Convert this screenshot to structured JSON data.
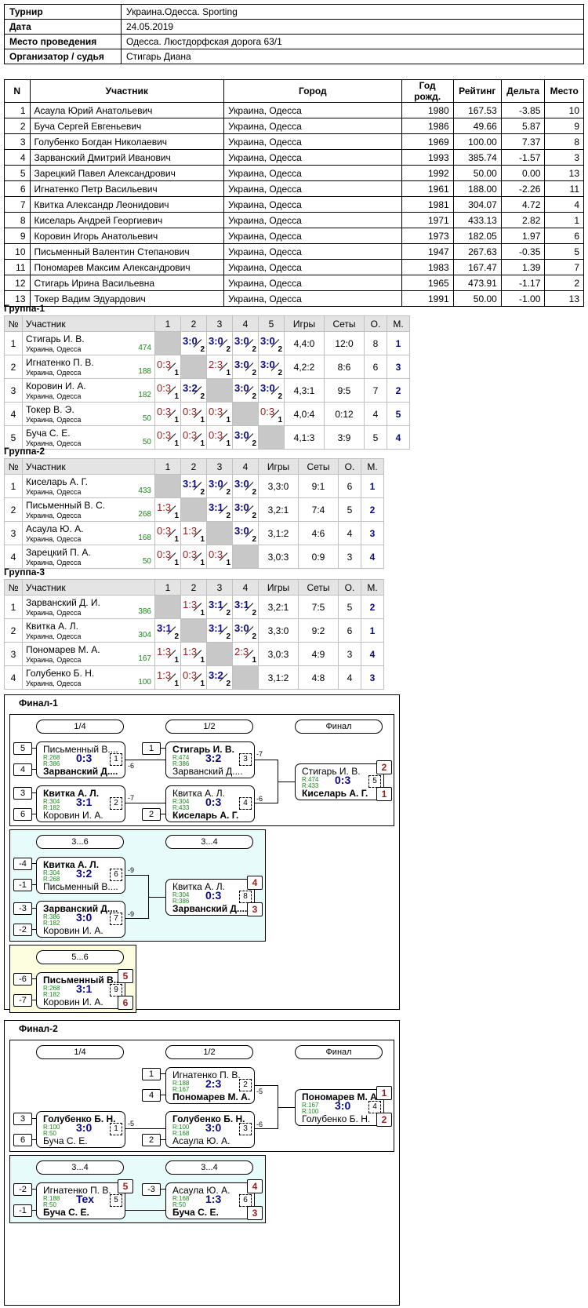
{
  "info": [
    {
      "k": "Турнир",
      "v": "Украина.Одесса. Sporting"
    },
    {
      "k": "Дата",
      "v": "24.05.2019"
    },
    {
      "k": "Место проведения",
      "v": "Одесса. Люстдорфская дорога 63/1"
    },
    {
      "k": "Организатор / судья",
      "v": "Стигарь Диана"
    }
  ],
  "participants": {
    "headers": [
      "N",
      "Участник",
      "Город",
      "Год рожд.",
      "Рейтинг",
      "Дельта",
      "Место"
    ],
    "rows": [
      [
        "1",
        "Асаула Юрий Анатольевич",
        "Украина, Одесса",
        "1980",
        "167.53",
        "-3.85",
        "10"
      ],
      [
        "2",
        "Буча Сергей Евгеньевич",
        "Украина, Одесса",
        "1986",
        "49.66",
        "5.87",
        "9"
      ],
      [
        "3",
        "Голубенко Богдан Николаевич",
        "Украина, Одесса",
        "1969",
        "100.00",
        "7.37",
        "8"
      ],
      [
        "4",
        "Зарванский Дмитрий Иванович",
        "Украина, Одесса",
        "1993",
        "385.74",
        "-1.57",
        "3"
      ],
      [
        "5",
        "Зарецкий Павел Александрович",
        "Украина, Одесса",
        "1992",
        "50.00",
        "0.00",
        "13"
      ],
      [
        "6",
        "Игнатенко Петр Васильевич",
        "Украина, Одесса",
        "1961",
        "188.00",
        "-2.26",
        "11"
      ],
      [
        "7",
        "Квитка Александр Леонидович",
        "Украина, Одесса",
        "1981",
        "304.07",
        "4.72",
        "4"
      ],
      [
        "8",
        "Киселарь Андрей Георгиевич",
        "Украина, Одесса",
        "1971",
        "433.13",
        "2.82",
        "1"
      ],
      [
        "9",
        "Коровин Игорь Анатольевич",
        "Украина, Одесса",
        "1973",
        "182.05",
        "1.97",
        "6"
      ],
      [
        "10",
        "Письменный Валентин Степанович",
        "Украина, Одесса",
        "1947",
        "267.63",
        "-0.35",
        "5"
      ],
      [
        "11",
        "Пономарев Максим Александрович",
        "Украина, Одесса",
        "1983",
        "167.47",
        "1.39",
        "7"
      ],
      [
        "12",
        "Стигарь Ирина Васильевна",
        "Украина, Одесса",
        "1965",
        "473.91",
        "-1.17",
        "2"
      ],
      [
        "13",
        "Токер Вадим Эдуардович",
        "Украина, Одесса",
        "1991",
        "50.00",
        "-1.00",
        "13"
      ]
    ]
  },
  "group_headers": {
    "no": "№",
    "name": "Участник",
    "games": "Игры",
    "sets": "Сеты",
    "points": "О.",
    "place": "М."
  },
  "city_short": "Украина, Одесса",
  "groups": [
    {
      "title": "Группа-1",
      "players": [
        {
          "n": "1",
          "name": "Стигарь И. В.",
          "rating": "474",
          "cells": [
            null,
            [
              "3:0",
              "2"
            ],
            [
              "3:0",
              "2"
            ],
            [
              "3:0",
              "2"
            ],
            [
              "3:0",
              "2"
            ]
          ],
          "games": "4,4:0",
          "sets": "12:0",
          "pts": "8",
          "place": "1"
        },
        {
          "n": "2",
          "name": "Игнатенко П. В.",
          "rating": "188",
          "cells": [
            [
              "0:3",
              "1"
            ],
            null,
            [
              "2:3",
              "1"
            ],
            [
              "3:0",
              "2"
            ],
            [
              "3:0",
              "2"
            ]
          ],
          "games": "4,2:2",
          "sets": "8:6",
          "pts": "6",
          "place": "3"
        },
        {
          "n": "3",
          "name": "Коровин И. А.",
          "rating": "182",
          "cells": [
            [
              "0:3",
              "1"
            ],
            [
              "3:2",
              "2"
            ],
            null,
            [
              "3:0",
              "2"
            ],
            [
              "3:0",
              "2"
            ]
          ],
          "games": "4,3:1",
          "sets": "9:5",
          "pts": "7",
          "place": "2"
        },
        {
          "n": "4",
          "name": "Токер В. Э.",
          "rating": "50",
          "cells": [
            [
              "0:3",
              "1"
            ],
            [
              "0:3",
              "1"
            ],
            [
              "0:3",
              "1"
            ],
            null,
            [
              "0:3",
              "1"
            ]
          ],
          "games": "4,0:4",
          "sets": "0:12",
          "pts": "4",
          "place": "5"
        },
        {
          "n": "5",
          "name": "Буча С. Е.",
          "rating": "50",
          "cells": [
            [
              "0:3",
              "1"
            ],
            [
              "0:3",
              "1"
            ],
            [
              "0:3",
              "1"
            ],
            [
              "3:0",
              "2"
            ],
            null
          ],
          "games": "4,1:3",
          "sets": "3:9",
          "pts": "5",
          "place": "4"
        }
      ]
    },
    {
      "title": "Группа-2",
      "players": [
        {
          "n": "1",
          "name": "Киселарь А. Г.",
          "rating": "433",
          "cells": [
            null,
            [
              "3:1",
              "2"
            ],
            [
              "3:0",
              "2"
            ],
            [
              "3:0",
              "2"
            ]
          ],
          "games": "3,3:0",
          "sets": "9:1",
          "pts": "6",
          "place": "1"
        },
        {
          "n": "2",
          "name": "Письменный В. С.",
          "rating": "268",
          "cells": [
            [
              "1:3",
              "1"
            ],
            null,
            [
              "3:1",
              "2"
            ],
            [
              "3:0",
              "2"
            ]
          ],
          "games": "3,2:1",
          "sets": "7:4",
          "pts": "5",
          "place": "2"
        },
        {
          "n": "3",
          "name": "Асаула Ю. А.",
          "rating": "168",
          "cells": [
            [
              "0:3",
              "1"
            ],
            [
              "1:3",
              "1"
            ],
            null,
            [
              "3:0",
              "2"
            ]
          ],
          "games": "3,1:2",
          "sets": "4:6",
          "pts": "4",
          "place": "3"
        },
        {
          "n": "4",
          "name": "Зарецкий П. А.",
          "rating": "50",
          "cells": [
            [
              "0:3",
              "1"
            ],
            [
              "0:3",
              "1"
            ],
            [
              "0:3",
              "1"
            ],
            null
          ],
          "games": "3,0:3",
          "sets": "0:9",
          "pts": "3",
          "place": "4"
        }
      ]
    },
    {
      "title": "Группа-3",
      "players": [
        {
          "n": "1",
          "name": "Зарванский Д. И.",
          "rating": "386",
          "cells": [
            null,
            [
              "1:3",
              "1"
            ],
            [
              "3:1",
              "2"
            ],
            [
              "3:1",
              "2"
            ]
          ],
          "games": "3,2:1",
          "sets": "7:5",
          "pts": "5",
          "place": "2"
        },
        {
          "n": "2",
          "name": "Квитка А. Л.",
          "rating": "304",
          "cells": [
            [
              "3:1",
              "2"
            ],
            null,
            [
              "3:1",
              "2"
            ],
            [
              "3:0",
              "2"
            ]
          ],
          "games": "3,3:0",
          "sets": "9:2",
          "pts": "6",
          "place": "1"
        },
        {
          "n": "3",
          "name": "Пономарев М. А.",
          "rating": "167",
          "cells": [
            [
              "1:3",
              "1"
            ],
            [
              "1:3",
              "1"
            ],
            null,
            [
              "2:3",
              "1"
            ]
          ],
          "games": "3,0:3",
          "sets": "4:9",
          "pts": "3",
          "place": "4"
        },
        {
          "n": "4",
          "name": "Голубенко Б. Н.",
          "rating": "100",
          "cells": [
            [
              "1:3",
              "1"
            ],
            [
              "0:3",
              "1"
            ],
            [
              "3:2",
              "2"
            ],
            null
          ],
          "games": "3,1:2",
          "sets": "4:8",
          "pts": "4",
          "place": "3"
        }
      ]
    }
  ],
  "final1": {
    "title": "Финал-1",
    "rounds": [
      "1/4",
      "1/2",
      "Финал"
    ],
    "m1": {
      "p1": "Письменный В....",
      "p2": "Зарванский Д....",
      "r1": "R:268",
      "r2": "R:386",
      "score": "0:3",
      "num": "1",
      "s1": "5",
      "s2": "4",
      "win": 2,
      "out": "-6"
    },
    "m2": {
      "p1": "Квитка А. Л.",
      "p2": "Коровин И. А.",
      "r1": "R:304",
      "r2": "R:182",
      "score": "3:1",
      "num": "2",
      "s1": "3",
      "s2": "6",
      "win": 1,
      "out": "-7"
    },
    "m3": {
      "p1": "Стигарь И. В.",
      "p2": "Зарванский Д....",
      "r1": "R:474",
      "r2": "R:386",
      "score": "3:2",
      "num": "3",
      "s1": "1",
      "win": 1,
      "out": "-7"
    },
    "m4": {
      "p1": "Квитка А. Л.",
      "p2": "Киселарь А. Г.",
      "r1": "R:304",
      "r2": "R:433",
      "score": "0:3",
      "num": "4",
      "s2": "2",
      "win": 2,
      "out": "-6"
    },
    "m5": {
      "p1": "Стигарь И. В.",
      "p2": "Киселарь А. Г.",
      "r1": "R:474",
      "r2": "R:433",
      "score": "0:3",
      "num": "5",
      "pl1": "2",
      "pl2": "1",
      "win": 2
    },
    "c36": {
      "title": "3...6",
      "title2": "3...4",
      "m6": {
        "p1": "Квитка А. Л.",
        "p2": "Письменный В....",
        "r1": "R:304",
        "r2": "R:268",
        "score": "3:2",
        "num": "6",
        "s1": "-4",
        "s2": "-1",
        "win": 1,
        "out": "-9"
      },
      "m7": {
        "p1": "Зарванский Д....",
        "p2": "Коровин И. А.",
        "r1": "R:386",
        "r2": "R:182",
        "score": "3:0",
        "num": "7",
        "s1": "-3",
        "s2": "-2",
        "win": 1,
        "out": "-9"
      },
      "m8": {
        "p1": "Квитка А. Л.",
        "p2": "Зарванский Д....",
        "r1": "R:304",
        "r2": "R:386",
        "score": "0:3",
        "num": "8",
        "pl1": "4",
        "pl2": "3",
        "win": 2
      }
    },
    "c56": {
      "title": "5...6",
      "m9": {
        "p1": "Письменный В....",
        "p2": "Коровин И. А.",
        "r1": "R:268",
        "r2": "R:182",
        "score": "3:1",
        "num": "9",
        "s1": "-6",
        "s2": "-7",
        "pl1": "5",
        "pl2": "6",
        "win": 1
      }
    }
  },
  "final2": {
    "title": "Финал-2",
    "rounds": [
      "1/4",
      "1/2",
      "Финал"
    ],
    "m1": {
      "p1": "Голубенко Б. Н.",
      "p2": "Буча С. Е.",
      "r1": "R:100",
      "r2": "R:50",
      "score": "3:0",
      "num": "1",
      "s1": "3",
      "s2": "6",
      "win": 1,
      "out": "-5"
    },
    "m2": {
      "p1": "Игнатенко П. В.",
      "p2": "Пономарев М. А.",
      "r1": "R:188",
      "r2": "R:167",
      "score": "2:3",
      "num": "2",
      "s1": "1",
      "s2": "4",
      "win": 2,
      "out": "-5"
    },
    "m3": {
      "p1": "Голубенко Б. Н.",
      "p2": "Асаула Ю. А.",
      "r1": "R:100",
      "r2": "R:168",
      "score": "3:0",
      "num": "3",
      "s2": "2",
      "win": 1,
      "out": "-6"
    },
    "m4": {
      "p1": "Пономарев М. А.",
      "p2": "Голубенко Б. Н.",
      "r1": "R:167",
      "r2": "R:100",
      "score": "3:0",
      "num": "4",
      "pl1": "1",
      "pl2": "2",
      "win": 1
    },
    "c34": {
      "title": "3...4",
      "title2": "3...4",
      "m5": {
        "p1": "Игнатенко П. В.",
        "p2": "Буча С. Е.",
        "r1": "R:188",
        "r2": "R:50",
        "score": "Tex",
        "num": "5",
        "s1": "-2",
        "s2": "-1",
        "pl1": "5",
        "win": 2
      },
      "m6": {
        "p1": "Асаула Ю. А.",
        "p2": "Буча С. Е.",
        "r1": "R:168",
        "r2": "R:50",
        "score": "1:3",
        "num": "6",
        "s1": "-3",
        "pl1": "4",
        "pl2": "3",
        "win": 2
      }
    }
  }
}
